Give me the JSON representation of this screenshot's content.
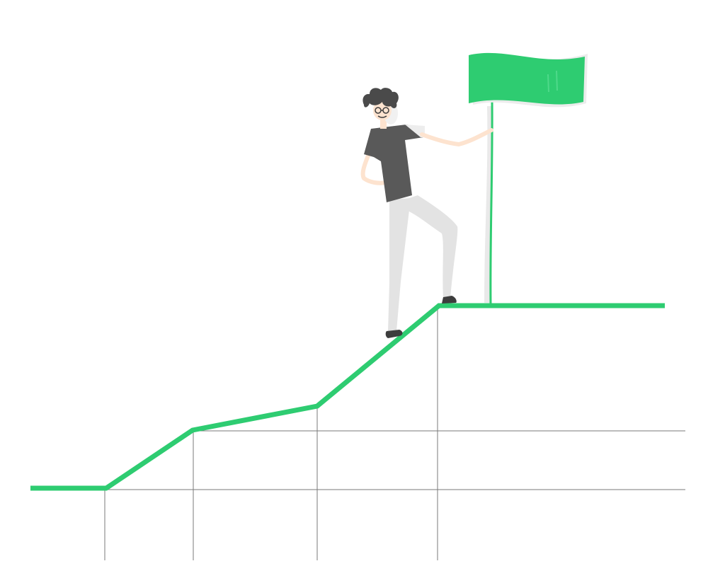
{
  "colors": {
    "background": "#ffffff",
    "accent_green": "#2ecc71",
    "grid_line": "#7a7a7a",
    "shirt": "#595959",
    "hair": "#4a4a4a",
    "pants": "#e3e3e3",
    "skin": "#fde3cf",
    "shoe": "#3d3d3d",
    "flag_shadow": "#27ae60"
  },
  "illustration": {
    "subject": "person-with-flag-on-rising-path",
    "icons": [
      "person-icon",
      "flag-icon",
      "path-line"
    ]
  }
}
